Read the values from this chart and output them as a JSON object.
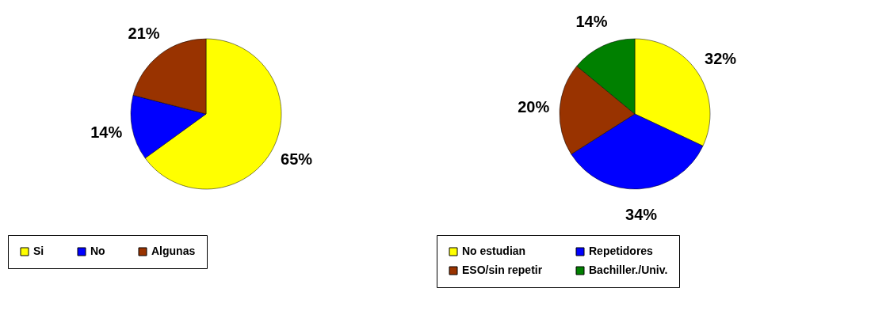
{
  "chart_data": [
    {
      "type": "pie",
      "categories": [
        "Si",
        "No",
        "Algunas"
      ],
      "values": [
        65,
        14,
        21
      ],
      "colors": [
        "#ffff00",
        "#0000ff",
        "#993300"
      ],
      "value_labels": [
        "65%",
        "14%",
        "21%"
      ],
      "legend": "bottom"
    },
    {
      "type": "pie",
      "categories": [
        "No estudian",
        "Repetidores",
        "ESO/sin repetir",
        "Bachiller./Univ."
      ],
      "values": [
        32,
        34,
        20,
        14
      ],
      "colors": [
        "#ffff00",
        "#0000ff",
        "#993300",
        "#008000"
      ],
      "value_labels": [
        "32%",
        "34%",
        "20%",
        "14%"
      ],
      "legend": "bottom"
    }
  ]
}
